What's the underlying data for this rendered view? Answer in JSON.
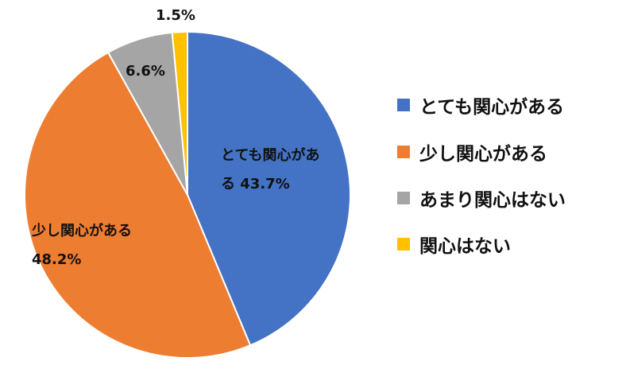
{
  "chart_data": {
    "type": "pie",
    "categories": [
      "とても関心がある",
      "少し関心がある",
      "あまり関心はない",
      "関心はない"
    ],
    "values": [
      43.7,
      48.2,
      6.6,
      1.5
    ],
    "value_labels": [
      "43.7%",
      "48.2%",
      "6.6%",
      "1.5%"
    ],
    "colors": [
      "#4472c4",
      "#ed7d31",
      "#a5a5a5",
      "#ffc000"
    ],
    "legend": "right"
  }
}
